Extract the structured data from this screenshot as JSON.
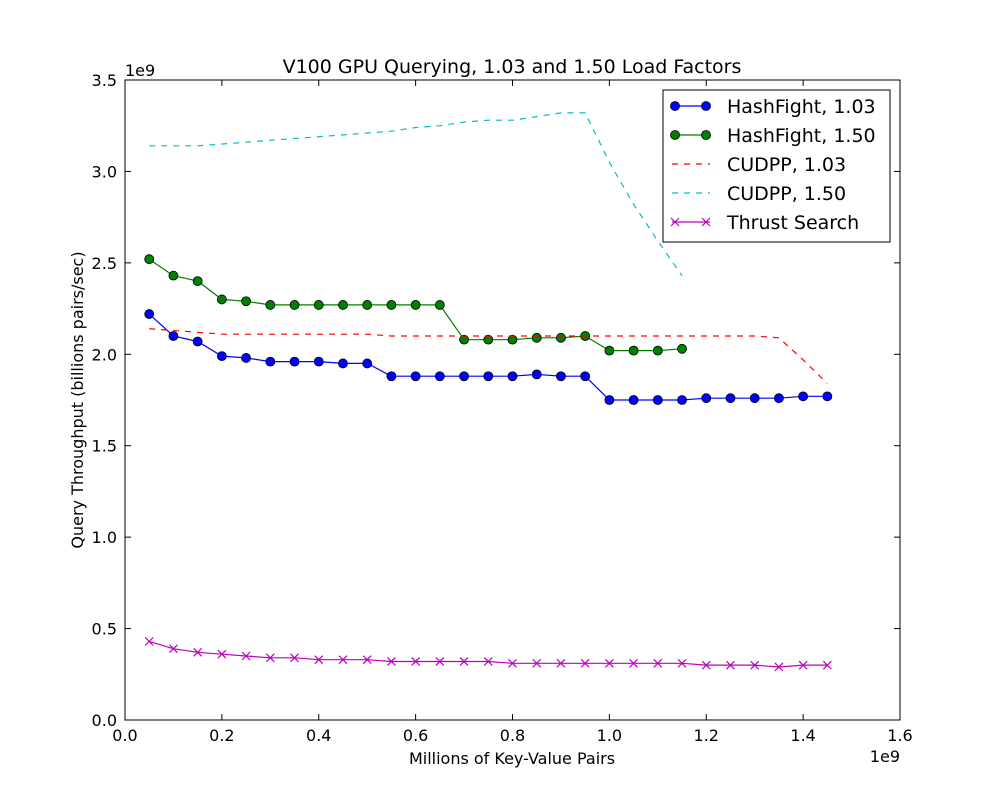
{
  "chart_data": {
    "type": "line",
    "title": "V100 GPU Querying, 1.03 and 1.50 Load Factors",
    "xlabel": "Millions of Key-Value Pairs",
    "ylabel": "Query Throughput (billions pairs/sec)",
    "x_offset_label": "1e9",
    "y_offset_label": "1e9",
    "xlim": [
      0,
      1.6
    ],
    "ylim": [
      0,
      3.5
    ],
    "x_ticks": [
      "0.0",
      "0.2",
      "0.4",
      "0.6",
      "0.8",
      "1.0",
      "1.2",
      "1.4",
      "1.6"
    ],
    "y_ticks": [
      "0.0",
      "0.5",
      "1.0",
      "1.5",
      "2.0",
      "2.5",
      "3.0",
      "3.5"
    ],
    "grid": false,
    "legend_position": "top-right",
    "series": [
      {
        "name": "HashFight, 1.03",
        "color": "#0000ff",
        "style": "solid",
        "marker": "circle",
        "x": [
          0.05,
          0.1,
          0.15,
          0.2,
          0.25,
          0.3,
          0.35,
          0.4,
          0.45,
          0.5,
          0.55,
          0.6,
          0.65,
          0.7,
          0.75,
          0.8,
          0.85,
          0.9,
          0.95,
          1.0,
          1.05,
          1.1,
          1.15,
          1.2,
          1.25,
          1.3,
          1.35,
          1.4,
          1.45
        ],
        "y": [
          2.22,
          2.1,
          2.07,
          1.99,
          1.98,
          1.96,
          1.96,
          1.96,
          1.95,
          1.95,
          1.88,
          1.88,
          1.88,
          1.88,
          1.88,
          1.88,
          1.89,
          1.88,
          1.88,
          1.75,
          1.75,
          1.75,
          1.75,
          1.76,
          1.76,
          1.76,
          1.76,
          1.77,
          1.77
        ]
      },
      {
        "name": "HashFight, 1.50",
        "color": "#008000",
        "style": "solid",
        "marker": "circle",
        "x": [
          0.05,
          0.1,
          0.15,
          0.2,
          0.25,
          0.3,
          0.35,
          0.4,
          0.45,
          0.5,
          0.55,
          0.6,
          0.65,
          0.7,
          0.75,
          0.8,
          0.85,
          0.9,
          0.95,
          1.0,
          1.05,
          1.1,
          1.15
        ],
        "y": [
          2.52,
          2.43,
          2.4,
          2.3,
          2.29,
          2.27,
          2.27,
          2.27,
          2.27,
          2.27,
          2.27,
          2.27,
          2.27,
          2.08,
          2.08,
          2.08,
          2.09,
          2.09,
          2.1,
          2.02,
          2.02,
          2.02,
          2.03
        ]
      },
      {
        "name": "CUDPP, 1.03",
        "color": "#ff0000",
        "style": "dashed",
        "marker": "none",
        "x": [
          0.05,
          0.1,
          0.15,
          0.2,
          0.25,
          0.3,
          0.35,
          0.4,
          0.45,
          0.5,
          0.55,
          0.6,
          0.65,
          0.7,
          0.75,
          0.8,
          0.85,
          0.9,
          0.95,
          1.0,
          1.05,
          1.1,
          1.15,
          1.2,
          1.25,
          1.3,
          1.35,
          1.4,
          1.45
        ],
        "y": [
          2.14,
          2.13,
          2.12,
          2.11,
          2.11,
          2.11,
          2.11,
          2.11,
          2.11,
          2.11,
          2.1,
          2.1,
          2.1,
          2.1,
          2.1,
          2.1,
          2.1,
          2.1,
          2.1,
          2.1,
          2.1,
          2.1,
          2.1,
          2.1,
          2.1,
          2.1,
          2.09,
          1.97,
          1.84
        ]
      },
      {
        "name": "CUDPP, 1.50",
        "color": "#00bfbf",
        "style": "dashed",
        "marker": "none",
        "x": [
          0.05,
          0.1,
          0.15,
          0.2,
          0.25,
          0.3,
          0.35,
          0.4,
          0.45,
          0.5,
          0.55,
          0.6,
          0.65,
          0.7,
          0.75,
          0.8,
          0.85,
          0.9,
          0.95,
          1.0,
          1.05,
          1.1,
          1.15
        ],
        "y": [
          3.14,
          3.14,
          3.14,
          3.15,
          3.16,
          3.17,
          3.18,
          3.19,
          3.2,
          3.21,
          3.22,
          3.24,
          3.25,
          3.27,
          3.28,
          3.28,
          3.3,
          3.32,
          3.32,
          3.05,
          2.82,
          2.62,
          2.43
        ]
      },
      {
        "name": "Thrust Search",
        "color": "#bf00bf",
        "style": "solid",
        "marker": "x",
        "x": [
          0.05,
          0.1,
          0.15,
          0.2,
          0.25,
          0.3,
          0.35,
          0.4,
          0.45,
          0.5,
          0.55,
          0.6,
          0.65,
          0.7,
          0.75,
          0.8,
          0.85,
          0.9,
          0.95,
          1.0,
          1.05,
          1.1,
          1.15,
          1.2,
          1.25,
          1.3,
          1.35,
          1.4,
          1.45
        ],
        "y": [
          0.43,
          0.39,
          0.37,
          0.36,
          0.35,
          0.34,
          0.34,
          0.33,
          0.33,
          0.33,
          0.32,
          0.32,
          0.32,
          0.32,
          0.32,
          0.31,
          0.31,
          0.31,
          0.31,
          0.31,
          0.31,
          0.31,
          0.31,
          0.3,
          0.3,
          0.3,
          0.29,
          0.3,
          0.3
        ]
      }
    ]
  }
}
